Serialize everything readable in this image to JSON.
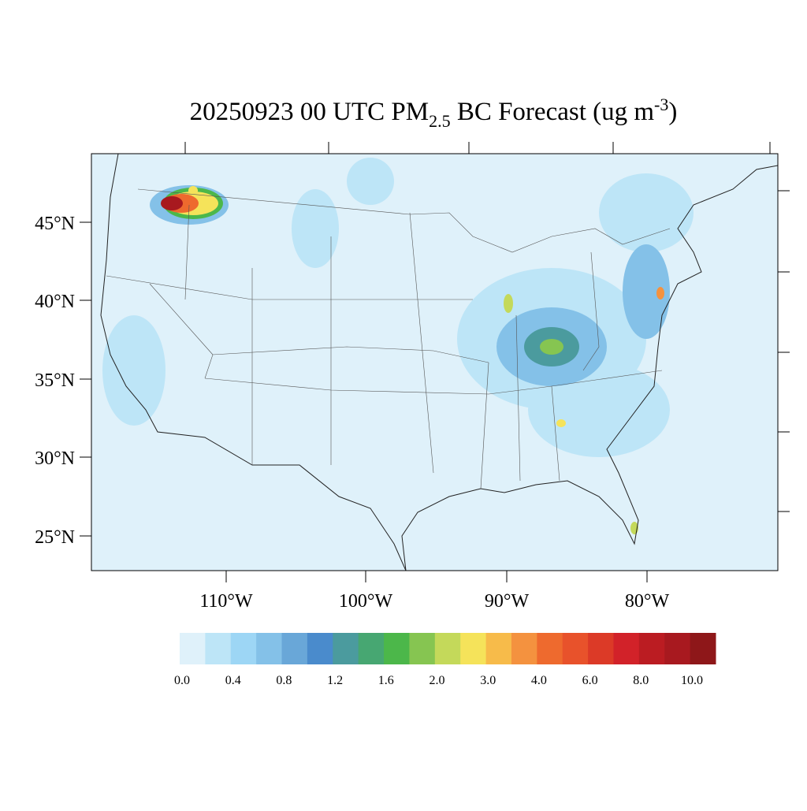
{
  "title": {
    "prefix": "20250923 00 UTC PM",
    "subscript": "2.5",
    "middle": " BC Forecast (ug m",
    "superscript": "-3",
    "suffix": ")"
  },
  "lat_labels": [
    "45°N",
    "40°N",
    "35°N",
    "30°N",
    "25°N"
  ],
  "lon_labels": [
    "110°W",
    "100°W",
    "90°W",
    "80°W"
  ],
  "colorbar": {
    "colors": [
      "#dff1fa",
      "#bde5f7",
      "#9dd6f5",
      "#84c1e8",
      "#69a7d8",
      "#4a8bcc",
      "#4b9b9e",
      "#47a772",
      "#4cb74a",
      "#86c551",
      "#c4d95a",
      "#f5e35a",
      "#f7bb4a",
      "#f4923f",
      "#ee6a2e",
      "#e8522b",
      "#dc3a27",
      "#d22229",
      "#bb1c22",
      "#a8191f",
      "#8e1719"
    ],
    "labels": [
      "0.0",
      "0.4",
      "0.8",
      "1.2",
      "1.6",
      "2.0",
      "3.0",
      "4.0",
      "6.0",
      "8.0",
      "10.0"
    ]
  }
}
